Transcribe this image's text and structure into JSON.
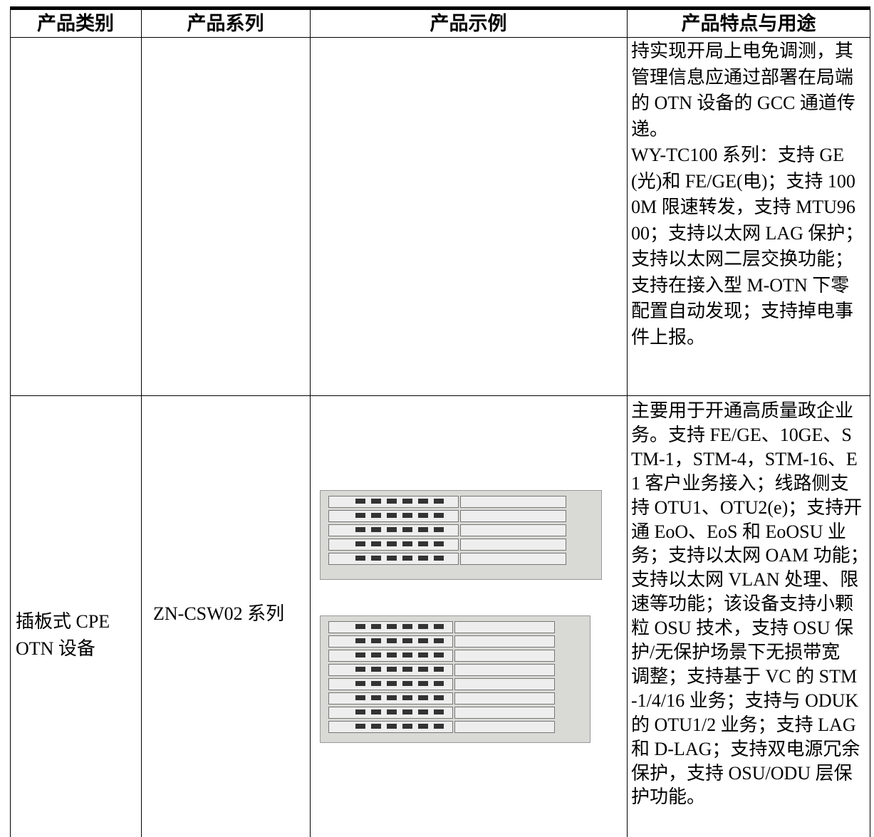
{
  "table": {
    "header": [
      "产品类别",
      "产品系列",
      "产品示例",
      "产品特点与用途"
    ],
    "rows": [
      {
        "features": [
          "持实现开局上电免调测，其",
          "管理信息应通过部署在局端",
          "的 OTN 设备的 GCC 通道传",
          "递。",
          "WY-TC100 系列：支持 GE",
          "(光)和 FE/GE(电)；支持 100",
          "0M 限速转发，支持 MTU96",
          "00；支持以太网 LAG 保护；",
          "支持以太网二层交换功能；",
          "支持在接入型 M-OTN 下零",
          "配置自动发现；支持掉电事",
          "件上报。"
        ]
      },
      {
        "category": [
          "插板式 CPE",
          "OTN 设备"
        ],
        "series": [
          "ZN-CSW02 系列"
        ],
        "features": [
          "主要用于开通高质量政企业",
          "务。支持 FE/GE、10GE、S",
          "TM-1，STM-4，STM-16、E",
          "1 客户业务接入；线路侧支",
          "持 OTU1、OTU2(e)；支持开",
          "通 EoO、EoS 和 EoOSU 业",
          "务；支持以太网 OAM 功能；",
          "支持以太网 VLAN 处理、限",
          "速等功能；该设备支持小颗",
          "粒 OSU 技术，支持 OSU 保",
          "护/无保护场景下无损带宽",
          "调整；支持基于 VC 的 STM",
          "-1/4/16 业务；支持与 ODUK",
          "的 OTU1/2 业务；支持 LAG",
          "和 D-LAG；支持双电源冗余",
          "保护，支持 OSU/ODU 层保",
          "护功能。"
        ]
      }
    ]
  }
}
